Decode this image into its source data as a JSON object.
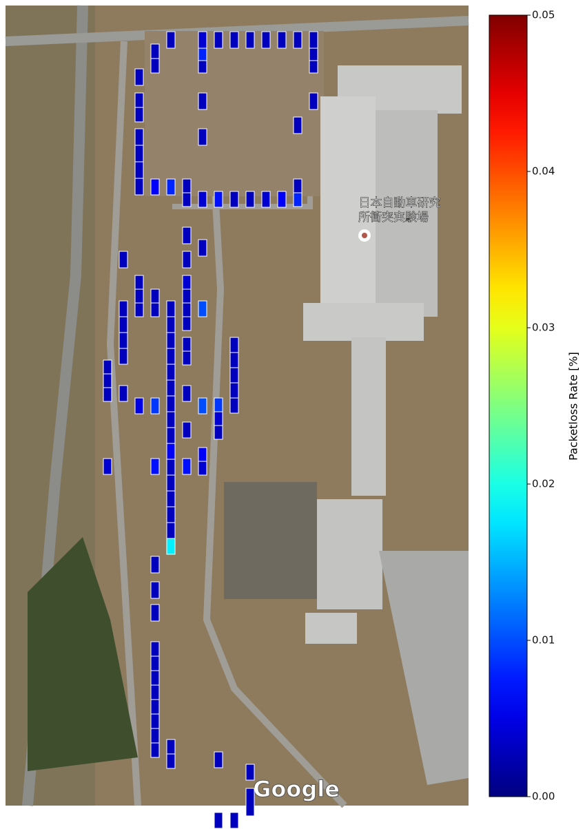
{
  "chart_data": {
    "type": "heatmap",
    "colormap": "jet",
    "clabel": "Packetloss Rate [%]",
    "clim": [
      0,
      0.05
    ],
    "cticks": [
      {
        "value": 0,
        "label": "0.00"
      },
      0.01,
      0.02,
      0.03,
      0.04,
      0.05
    ],
    "annotations": [
      "日本自動車研究",
      "所衝突実験場"
    ],
    "attribution": "Google",
    "values": [
      0.003,
      0.004,
      0.003,
      0.003,
      0.003,
      0.003,
      0.003,
      0.003,
      0.003,
      0.003,
      0.003,
      0.008,
      0.003,
      0.003,
      0.003,
      0.003,
      0.003,
      0.003,
      0.003,
      0.003,
      0.003,
      0.003,
      0.003,
      0.003,
      0.003,
      0.003,
      0.006,
      0.008,
      0.003,
      0.003,
      0.004,
      0.007,
      0.003,
      0.003,
      0.004,
      0.006,
      0.003,
      0.008,
      0.003,
      0.003,
      0.003,
      0.003,
      0.003,
      0.003,
      0.003,
      0.003,
      0.003,
      0.004,
      0.003,
      0.003,
      0.003,
      0.01,
      0.003,
      0.003,
      0.003,
      0.003,
      0.003,
      0.003,
      0.003,
      0.003,
      0.003,
      0.003,
      0.003,
      0.003,
      0.003,
      0.006,
      0.003,
      0.003,
      0.003,
      0.003,
      0.003,
      0.018,
      0.003,
      0.003,
      0.003,
      0.003,
      0.003,
      0.003,
      0.003,
      0.003,
      0.003,
      0.003,
      0.003,
      0.003,
      0.005,
      0.009,
      0.01,
      0.009,
      0.004,
      0.003,
      0.003,
      0.006,
      0.004,
      0.004,
      0.007,
      0.007,
      0.003,
      0.003,
      0.003,
      0.003,
      0.003,
      0.003,
      0.003,
      0.003,
      0.003,
      0.003,
      0.003,
      0.003,
      0.003,
      0.003,
      0.003,
      0.003,
      0.003,
      0.003
    ]
  }
}
